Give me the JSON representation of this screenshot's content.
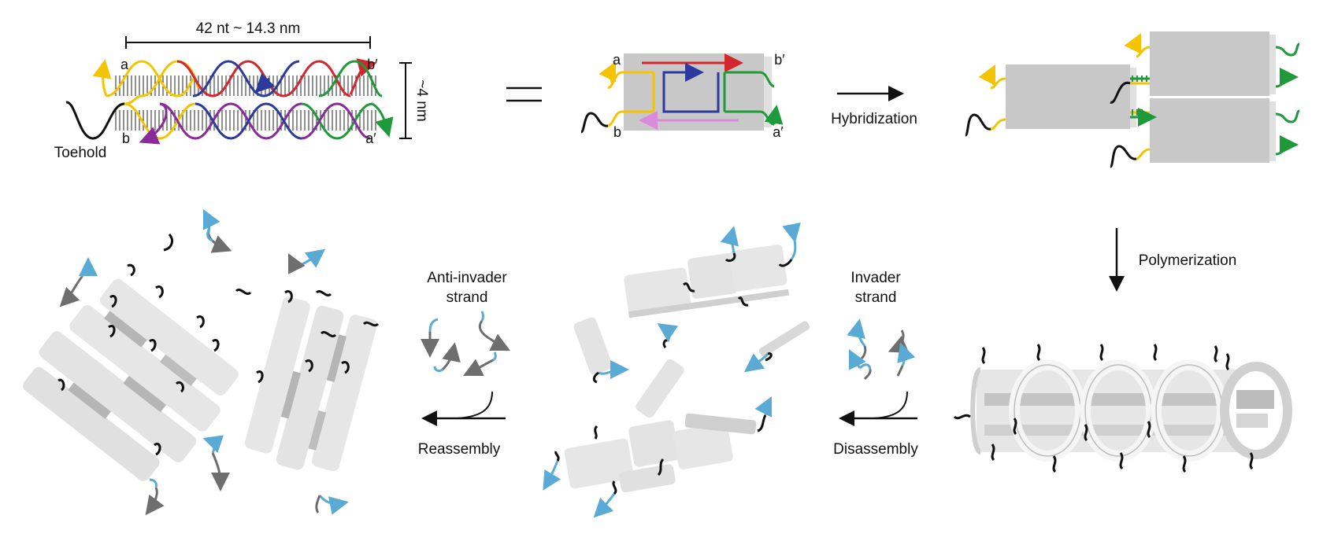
{
  "helix": {
    "dimension_length": "42 nt ~ 14.3 nm",
    "dimension_width": "~4 nm",
    "end_a": "a",
    "end_b": "b",
    "end_b_prime": "b′",
    "end_a_prime": "a′",
    "toehold": "Toehold"
  },
  "block": {
    "end_a": "a",
    "end_b": "b",
    "end_b_prime": "b′",
    "end_a_prime": "a′"
  },
  "steps": {
    "hybridization": "Hybridization",
    "polymerization": "Polymerization",
    "invader_line1": "Invader",
    "invader_line2": "strand",
    "disassembly": "Disassembly",
    "anti_invader_line1": "Anti-invader",
    "anti_invader_line2": "strand",
    "reassembly": "Reassembly"
  },
  "colors": {
    "yellow_strand": "#f5c400",
    "red_strand": "#d3262e",
    "blue_strand": "#2b3a9c",
    "purple_strand": "#8a2a9b",
    "green_strand": "#1f9a3a",
    "pink_strand": "#d98ad9",
    "toehold": "#111111",
    "invader": "#5aaad6",
    "anti_invader": "#6e6e6e",
    "tile": "#c8c8c8",
    "tube": "#e6e6e6"
  }
}
